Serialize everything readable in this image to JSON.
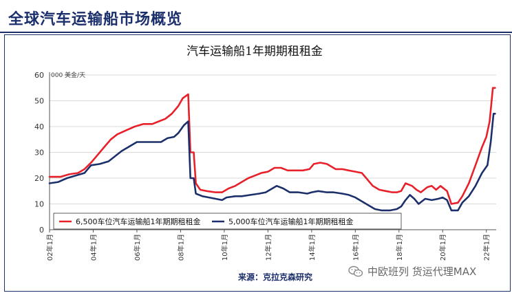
{
  "page": {
    "title": "全球汽车运输船市场概览"
  },
  "chart_data": {
    "type": "line",
    "title": "汽车运输船1年期期租租金",
    "y_unit": "000 美金/天",
    "ylim": [
      0,
      60
    ],
    "y_ticks": [
      0,
      10,
      20,
      30,
      40,
      50,
      60
    ],
    "x_tick_labels": [
      "02年1月",
      "04年1月",
      "06年1月",
      "08年1月",
      "10年1月",
      "12年1月",
      "14年1月",
      "16年1月",
      "18年1月",
      "20年1月",
      "22年1月"
    ],
    "x_tick_years": [
      2002,
      2004,
      2006,
      2008,
      2010,
      2012,
      2014,
      2016,
      2018,
      2020,
      2022
    ],
    "xlim": [
      2002.0,
      2022.45
    ],
    "grid": true,
    "legend_position": "bottom-left",
    "source": "来源：克拉克森研究",
    "series": [
      {
        "name": "6,500车位汽车运输船1年期期租租金",
        "color": "#e8202a",
        "points": [
          [
            2002.0,
            20.5
          ],
          [
            2002.5,
            20.5
          ],
          [
            2002.9,
            21.5
          ],
          [
            2003.3,
            22.0
          ],
          [
            2003.6,
            23.5
          ],
          [
            2003.9,
            26.0
          ],
          [
            2004.2,
            29.0
          ],
          [
            2004.5,
            32.0
          ],
          [
            2004.8,
            35.0
          ],
          [
            2005.1,
            37.0
          ],
          [
            2005.5,
            38.5
          ],
          [
            2005.9,
            40.0
          ],
          [
            2006.3,
            41.0
          ],
          [
            2006.7,
            41.0
          ],
          [
            2007.0,
            42.0
          ],
          [
            2007.3,
            43.0
          ],
          [
            2007.6,
            45.0
          ],
          [
            2007.9,
            48.0
          ],
          [
            2008.1,
            51.0
          ],
          [
            2008.35,
            52.5
          ],
          [
            2008.45,
            30.0
          ],
          [
            2008.6,
            30.0
          ],
          [
            2008.7,
            18.0
          ],
          [
            2008.9,
            15.5
          ],
          [
            2009.2,
            15.0
          ],
          [
            2009.6,
            14.5
          ],
          [
            2009.9,
            14.5
          ],
          [
            2010.2,
            16.0
          ],
          [
            2010.5,
            17.0
          ],
          [
            2010.8,
            18.5
          ],
          [
            2011.1,
            20.0
          ],
          [
            2011.4,
            21.0
          ],
          [
            2011.7,
            22.0
          ],
          [
            2012.0,
            22.5
          ],
          [
            2012.3,
            24.0
          ],
          [
            2012.6,
            24.0
          ],
          [
            2012.9,
            23.0
          ],
          [
            2013.3,
            23.0
          ],
          [
            2013.6,
            23.0
          ],
          [
            2013.9,
            23.5
          ],
          [
            2014.1,
            25.5
          ],
          [
            2014.4,
            26.0
          ],
          [
            2014.7,
            25.5
          ],
          [
            2014.9,
            24.5
          ],
          [
            2015.1,
            23.5
          ],
          [
            2015.4,
            23.5
          ],
          [
            2015.7,
            23.0
          ],
          [
            2016.0,
            22.5
          ],
          [
            2016.3,
            22.0
          ],
          [
            2016.5,
            20.0
          ],
          [
            2016.8,
            17.0
          ],
          [
            2017.1,
            15.5
          ],
          [
            2017.4,
            15.0
          ],
          [
            2017.7,
            14.5
          ],
          [
            2017.9,
            14.5
          ],
          [
            2018.1,
            15.0
          ],
          [
            2018.3,
            18.0
          ],
          [
            2018.6,
            17.0
          ],
          [
            2018.8,
            15.5
          ],
          [
            2019.0,
            14.5
          ],
          [
            2019.3,
            16.5
          ],
          [
            2019.5,
            17.0
          ],
          [
            2019.7,
            15.5
          ],
          [
            2019.9,
            17.0
          ],
          [
            2020.2,
            15.0
          ],
          [
            2020.4,
            10.0
          ],
          [
            2020.7,
            10.5
          ],
          [
            2020.9,
            13.0
          ],
          [
            2021.2,
            18.0
          ],
          [
            2021.5,
            25.0
          ],
          [
            2021.8,
            32.0
          ],
          [
            2022.0,
            36.0
          ],
          [
            2022.15,
            42.0
          ],
          [
            2022.3,
            55.0
          ],
          [
            2022.4,
            55.0
          ]
        ]
      },
      {
        "name": "5,000车位汽车运输船1年期期租租金",
        "color": "#1b2f6b",
        "points": [
          [
            2002.0,
            18.0
          ],
          [
            2002.4,
            18.5
          ],
          [
            2002.8,
            20.0
          ],
          [
            2003.2,
            21.0
          ],
          [
            2003.6,
            22.0
          ],
          [
            2003.9,
            25.0
          ],
          [
            2004.3,
            25.5
          ],
          [
            2004.7,
            26.5
          ],
          [
            2005.0,
            28.5
          ],
          [
            2005.3,
            30.5
          ],
          [
            2005.7,
            32.5
          ],
          [
            2006.0,
            34.0
          ],
          [
            2006.4,
            34.0
          ],
          [
            2006.8,
            34.0
          ],
          [
            2007.1,
            34.0
          ],
          [
            2007.4,
            35.5
          ],
          [
            2007.7,
            36.0
          ],
          [
            2007.9,
            37.5
          ],
          [
            2008.15,
            40.5
          ],
          [
            2008.35,
            42.0
          ],
          [
            2008.45,
            20.0
          ],
          [
            2008.6,
            20.0
          ],
          [
            2008.7,
            14.0
          ],
          [
            2009.0,
            13.0
          ],
          [
            2009.3,
            12.5
          ],
          [
            2009.6,
            12.0
          ],
          [
            2009.9,
            11.5
          ],
          [
            2010.1,
            12.5
          ],
          [
            2010.5,
            13.0
          ],
          [
            2010.8,
            13.0
          ],
          [
            2011.2,
            13.5
          ],
          [
            2011.6,
            14.0
          ],
          [
            2011.9,
            14.5
          ],
          [
            2012.1,
            15.5
          ],
          [
            2012.4,
            17.0
          ],
          [
            2012.7,
            16.0
          ],
          [
            2013.0,
            14.5
          ],
          [
            2013.4,
            14.5
          ],
          [
            2013.8,
            14.0
          ],
          [
            2014.0,
            14.5
          ],
          [
            2014.3,
            15.0
          ],
          [
            2014.7,
            14.5
          ],
          [
            2015.0,
            14.5
          ],
          [
            2015.4,
            14.0
          ],
          [
            2015.7,
            13.5
          ],
          [
            2016.0,
            12.5
          ],
          [
            2016.3,
            11.0
          ],
          [
            2016.6,
            9.5
          ],
          [
            2016.9,
            8.0
          ],
          [
            2017.2,
            7.5
          ],
          [
            2017.6,
            7.5
          ],
          [
            2017.9,
            8.0
          ],
          [
            2018.1,
            9.0
          ],
          [
            2018.3,
            11.5
          ],
          [
            2018.5,
            13.5
          ],
          [
            2018.7,
            12.0
          ],
          [
            2018.9,
            10.0
          ],
          [
            2019.2,
            12.0
          ],
          [
            2019.5,
            11.5
          ],
          [
            2019.8,
            12.0
          ],
          [
            2020.0,
            12.5
          ],
          [
            2020.2,
            11.5
          ],
          [
            2020.4,
            7.5
          ],
          [
            2020.7,
            7.5
          ],
          [
            2020.9,
            10.5
          ],
          [
            2021.2,
            13.0
          ],
          [
            2021.5,
            17.0
          ],
          [
            2021.8,
            22.0
          ],
          [
            2022.05,
            25.0
          ],
          [
            2022.2,
            34.0
          ],
          [
            2022.33,
            45.0
          ],
          [
            2022.4,
            45.0
          ]
        ]
      }
    ]
  },
  "watermark": {
    "text": "中欧班列 货运代理MAX",
    "icon": "wechat-icon"
  }
}
